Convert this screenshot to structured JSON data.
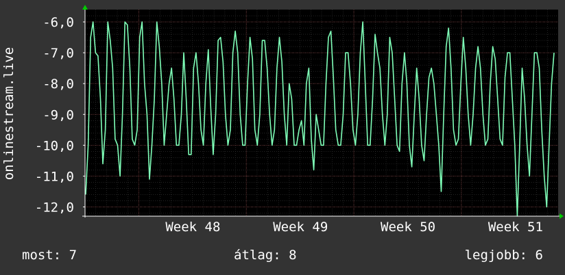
{
  "chart_data": {
    "type": "line",
    "ylabel": "onlinestream.live",
    "yticks": [
      -6,
      -7,
      -8,
      -9,
      -10,
      -11,
      -12
    ],
    "ytick_labels": [
      "-6,0",
      "-7,0",
      "-8,0",
      "-9,0",
      "-10,0",
      "-11,0",
      "-12,0"
    ],
    "ylim": [
      -12.3,
      -5.6
    ],
    "xlim": [
      0,
      44
    ],
    "xticks": [
      {
        "label": "Week 48",
        "pos": 5
      },
      {
        "label": "Week 49",
        "pos": 15
      },
      {
        "label": "Week 50",
        "pos": 25
      },
      {
        "label": "Week 51",
        "pos": 35
      }
    ],
    "grid": true,
    "colors": {
      "line": "#7fffb8",
      "background": "#000000",
      "grid_major": "#5a2a2a",
      "grid_minor": "#3a3a3a",
      "axis": "#ffffff",
      "arrow": "#00cc00"
    },
    "series": [
      {
        "values": [
          -11.6,
          -10.0,
          -6.5,
          -6.0,
          -7.0,
          -7.1,
          -8.5,
          -10.6,
          -9.5,
          -6.0,
          -6.6,
          -7.5,
          -9.8,
          -10.0,
          -11.0,
          -9.0,
          -6.0,
          -6.1,
          -7.5,
          -9.8,
          -10.0,
          -9.5,
          -6.5,
          -6.0,
          -8.0,
          -9.0,
          -11.1,
          -10.0,
          -8.5,
          -6.0,
          -6.8,
          -8.0,
          -10.0,
          -9.0,
          -8.0,
          -7.5,
          -8.5,
          -10.0,
          -10.0,
          -9.0,
          -7.0,
          -8.5,
          -10.3,
          -10.3,
          -7.5,
          -7.0,
          -8.0,
          -9.5,
          -10.0,
          -8.0,
          -6.9,
          -8.8,
          -10.3,
          -9.0,
          -6.6,
          -6.5,
          -7.3,
          -9.0,
          -10.0,
          -9.5,
          -7.0,
          -6.3,
          -7.0,
          -9.0,
          -10.0,
          -10.0,
          -8.0,
          -6.5,
          -7.2,
          -9.5,
          -10.0,
          -9.0,
          -6.6,
          -6.6,
          -7.5,
          -9.0,
          -10.0,
          -9.5,
          -7.5,
          -6.5,
          -7.3,
          -9.0,
          -10.0,
          -8.0,
          -8.5,
          -10.0,
          -10.0,
          -9.5,
          -9.2,
          -10.0,
          -8.0,
          -7.5,
          -9.8,
          -10.8,
          -9.0,
          -9.5,
          -10.0,
          -10.0,
          -8.0,
          -6.5,
          -6.3,
          -7.8,
          -9.5,
          -10.0,
          -10.0,
          -9.0,
          -7.0,
          -7.0,
          -8.0,
          -9.5,
          -10.0,
          -9.0,
          -7.0,
          -6.0,
          -8.0,
          -10.0,
          -10.0,
          -8.5,
          -6.4,
          -7.0,
          -7.5,
          -9.0,
          -10.0,
          -9.0,
          -6.5,
          -7.0,
          -8.5,
          -10.0,
          -10.2,
          -8.0,
          -7.0,
          -8.0,
          -10.0,
          -10.7,
          -9.0,
          -7.5,
          -8.5,
          -10.0,
          -10.5,
          -9.0,
          -7.8,
          -7.5,
          -8.0,
          -9.0,
          -10.0,
          -11.5,
          -9.0,
          -6.8,
          -6.2,
          -7.5,
          -9.5,
          -10.0,
          -9.8,
          -8.0,
          -6.5,
          -7.5,
          -9.0,
          -10.0,
          -9.0,
          -7.5,
          -6.8,
          -7.5,
          -9.0,
          -10.0,
          -9.8,
          -8.0,
          -6.8,
          -7.2,
          -8.5,
          -9.8,
          -10.0,
          -7.8,
          -7.0,
          -7.0,
          -8.5,
          -10.0,
          -12.3,
          -10.0,
          -7.5,
          -8.5,
          -10.0,
          -11.0,
          -9.0,
          -7.0,
          -7.0,
          -7.5,
          -9.5,
          -11.0,
          -12.0,
          -10.0,
          -8.0,
          -7.0
        ]
      }
    ]
  },
  "footer": {
    "now": "most: 7",
    "avg": "átlag: 8",
    "best": "legjobb: 6"
  }
}
